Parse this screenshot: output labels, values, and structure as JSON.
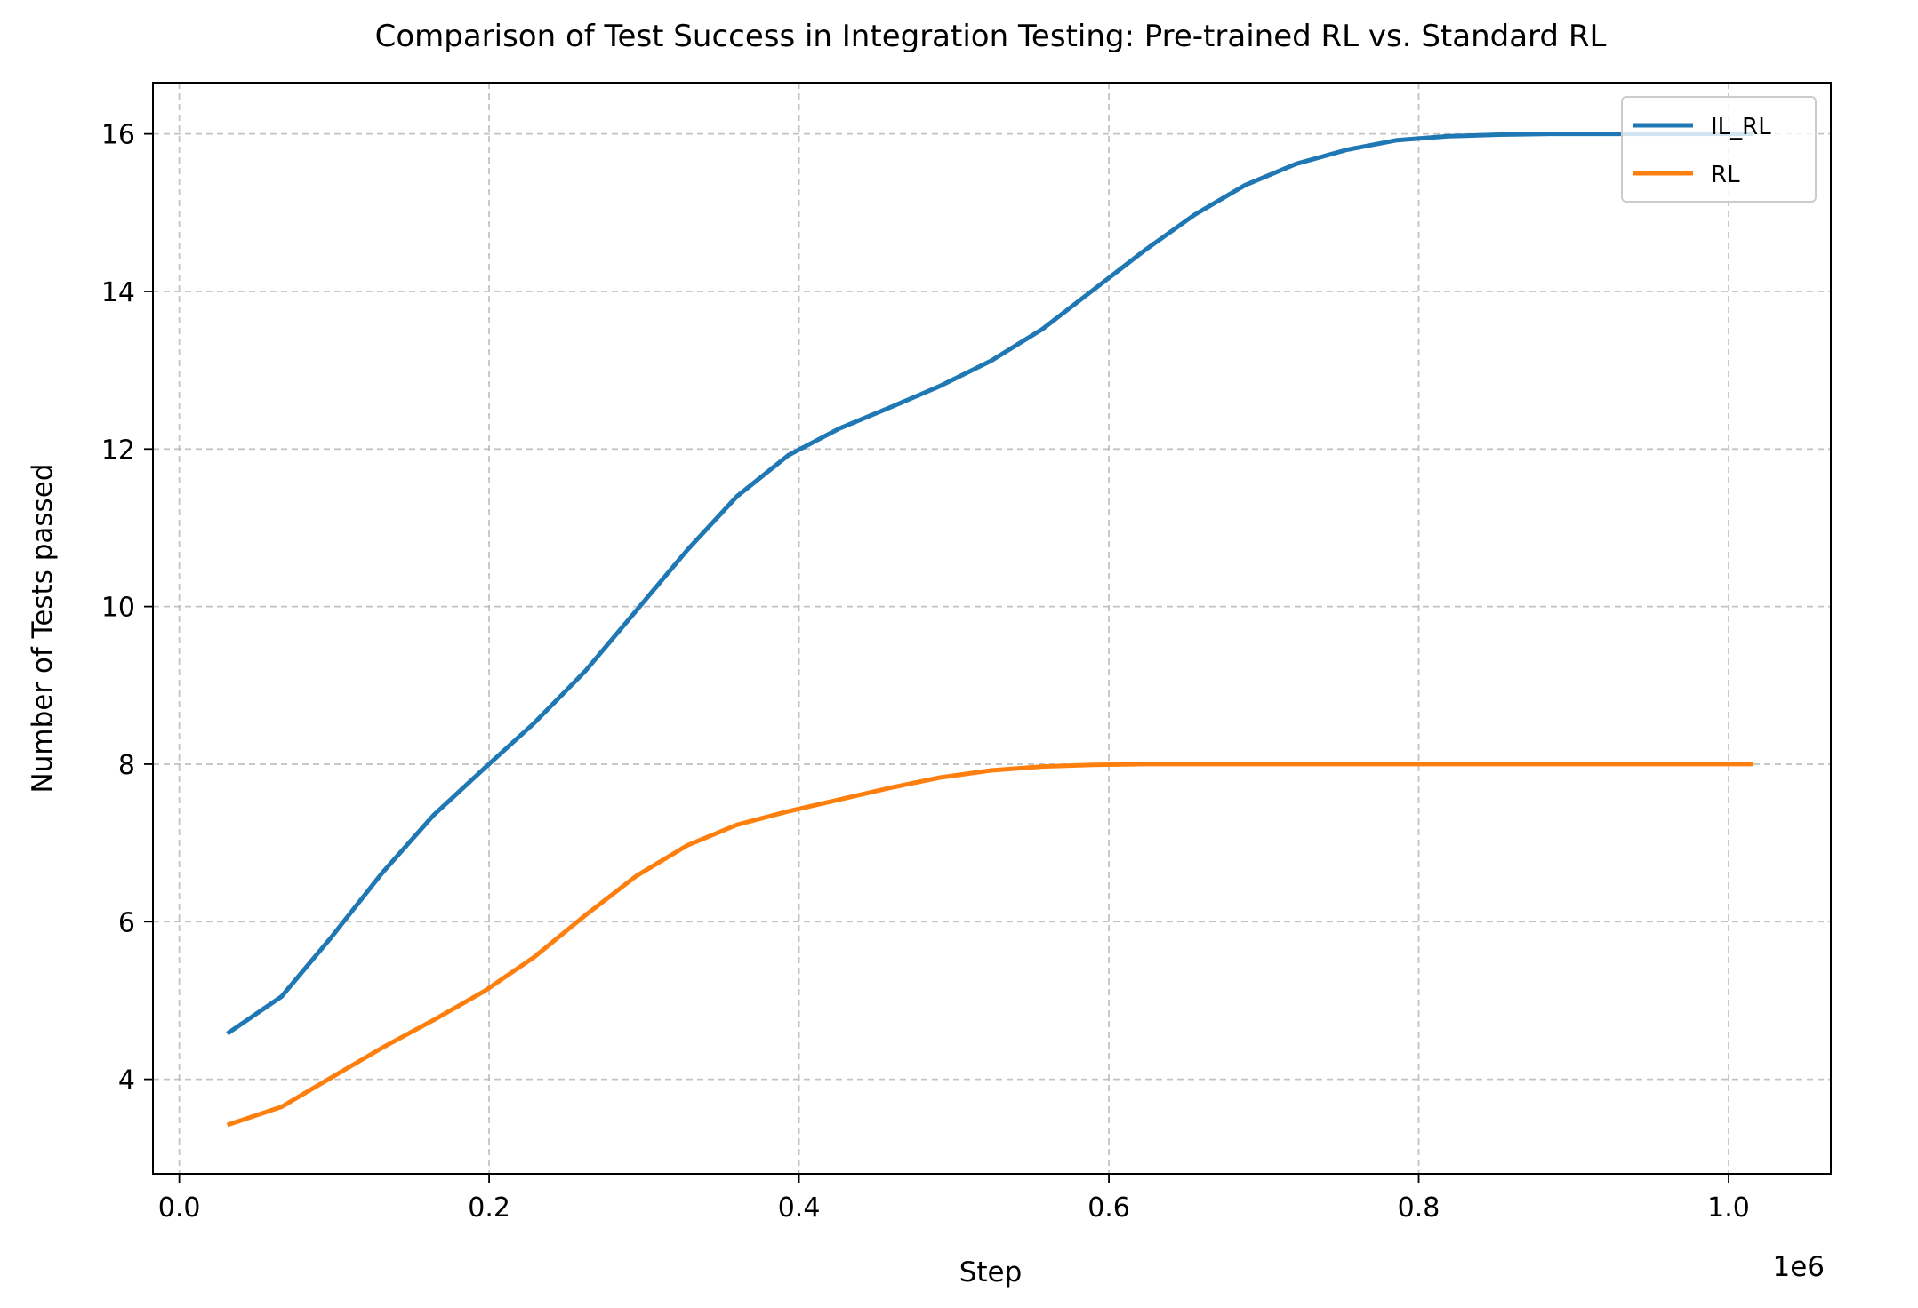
{
  "chart_data": {
    "type": "line",
    "title": "Comparison of Test Success in Integration Testing: Pre-trained RL vs. Standard RL",
    "xlabel": "Step",
    "ylabel": "Number of Tests passed",
    "x_offset_label": "1e6",
    "xlim": [
      -0.017,
      1.066
    ],
    "ylim": [
      2.8,
      16.65
    ],
    "x_ticks": [
      0.0,
      0.2,
      0.4,
      0.6,
      0.8,
      1.0
    ],
    "x_tick_labels": [
      "0.0",
      "0.2",
      "0.4",
      "0.6",
      "0.8",
      "1.0"
    ],
    "y_ticks": [
      4,
      6,
      8,
      10,
      12,
      14,
      16
    ],
    "y_tick_labels": [
      "4",
      "6",
      "8",
      "10",
      "12",
      "14",
      "16"
    ],
    "grid": true,
    "legend_position": "top-right",
    "x": [
      0.031,
      0.066,
      0.098,
      0.131,
      0.164,
      0.197,
      0.229,
      0.262,
      0.295,
      0.328,
      0.36,
      0.393,
      0.426,
      0.459,
      0.491,
      0.524,
      0.557,
      0.59,
      0.623,
      0.655,
      0.688,
      0.721,
      0.754,
      0.786,
      0.819,
      0.852,
      0.885,
      0.918,
      0.95,
      0.983,
      1.016
    ],
    "series": [
      {
        "name": "IL_RL",
        "color": "#1f77b4",
        "values": [
          4.58,
          5.05,
          5.8,
          6.62,
          7.35,
          7.95,
          8.52,
          9.18,
          9.95,
          10.72,
          11.4,
          11.92,
          12.26,
          12.53,
          12.8,
          13.12,
          13.52,
          14.02,
          14.52,
          14.97,
          15.35,
          15.62,
          15.8,
          15.92,
          15.97,
          15.99,
          16.0,
          16.0,
          16.0,
          16.0,
          16.0
        ]
      },
      {
        "name": "RL",
        "color": "#ff7f0e",
        "values": [
          3.42,
          3.65,
          4.02,
          4.4,
          4.75,
          5.12,
          5.55,
          6.08,
          6.58,
          6.97,
          7.23,
          7.4,
          7.55,
          7.7,
          7.83,
          7.92,
          7.97,
          7.99,
          8.0,
          8.0,
          8.0,
          8.0,
          8.0,
          8.0,
          8.0,
          8.0,
          8.0,
          8.0,
          8.0,
          8.0,
          8.0
        ]
      }
    ]
  }
}
